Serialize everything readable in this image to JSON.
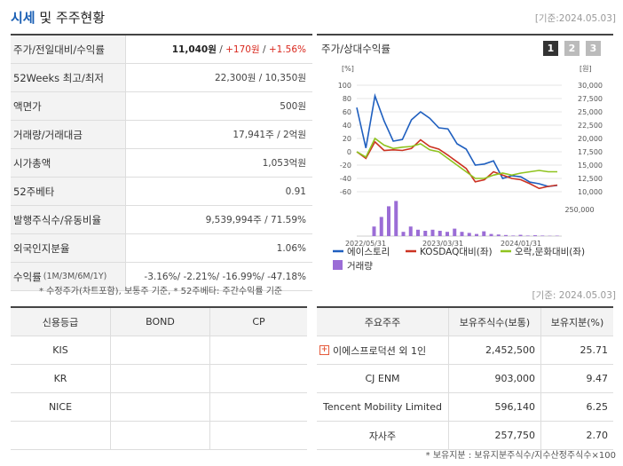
{
  "header": {
    "title_accent": "시세",
    "title_rest": " 및 주주현황",
    "date": "[기준:2024.05.03]"
  },
  "stock": {
    "rows": [
      {
        "label": "주가/전일대비/수익률",
        "price": "11,040원",
        "sep1": " / ",
        "change": "+170원",
        "sep2": " / ",
        "pct": "+1.56%"
      },
      {
        "label": "52Weeks 최고/최저",
        "value": "22,300원 / 10,350원"
      },
      {
        "label": "액면가",
        "value": "500원"
      },
      {
        "label": "거래량/거래대금",
        "value": "17,941주 / 2억원"
      },
      {
        "label": "시가총액",
        "value": "1,053억원"
      },
      {
        "label": "52주베타",
        "value": "0.91"
      },
      {
        "label": "발행주식수/유동비율",
        "value": "9,539,994주 / 71.59%"
      },
      {
        "label": "외국인지분율",
        "value": "1.06%"
      },
      {
        "label": "수익률",
        "sublabel": "(1M/3M/6M/1Y)",
        "value": "-3.16%/ -2.21%/ -16.99%/ -47.18%"
      }
    ],
    "footnote": "* 수정주가(차트포함), 보통주 기준, * 52주베타: 주간수익률 기준"
  },
  "chart_panel": {
    "title": "주가/상대수익률",
    "pages": [
      "1",
      "2",
      "3"
    ],
    "date": "[기준: 2024.05.03]"
  },
  "chart_data": {
    "type": "line",
    "title": "주가/상대수익률",
    "left_unit": "[%]",
    "right_unit": "[원]",
    "left_ticks": [
      "100",
      "80",
      "60",
      "40",
      "20",
      "0",
      "-20",
      "-40",
      "-60"
    ],
    "right_ticks": [
      "30,000",
      "27,500",
      "25,000",
      "22,500",
      "20,000",
      "17,500",
      "15,000",
      "12,500",
      "10,000"
    ],
    "volume_tick": "250,000",
    "x_labels": [
      "2022/05/31",
      "2023/03/31",
      "2024/01/31"
    ],
    "ylim_left": [
      -60,
      100
    ],
    "ylim_right": [
      10000,
      30000
    ],
    "series": [
      {
        "name": "에이스토리",
        "color": "#1f5fbf",
        "axis": "right",
        "values": [
          25800,
          18200,
          28000,
          23300,
          19500,
          19800,
          23500,
          25000,
          23800,
          22000,
          21800,
          19000,
          18000,
          15000,
          15200,
          15800,
          12500,
          13000,
          12800,
          11800,
          11500,
          11000,
          11200
        ]
      },
      {
        "name": "KOSDAQ대비(좌)",
        "color": "#cc3322",
        "axis": "left",
        "values": [
          0,
          -10,
          15,
          2,
          3,
          2,
          5,
          18,
          8,
          4,
          -5,
          -15,
          -25,
          -45,
          -42,
          -30,
          -35,
          -40,
          -42,
          -48,
          -55,
          -52,
          -50
        ]
      },
      {
        "name": "오락,문화대비(좌)",
        "color": "#8fc31f",
        "axis": "left",
        "values": [
          0,
          -8,
          20,
          10,
          5,
          7,
          8,
          12,
          3,
          0,
          -10,
          -20,
          -30,
          -40,
          -40,
          -35,
          -32,
          -35,
          -32,
          -30,
          -28,
          -30,
          -30
        ]
      }
    ],
    "volume": {
      "name": "거래량",
      "color": "#9b6dd6",
      "values": [
        0,
        0,
        90000,
        180000,
        280000,
        330000,
        40000,
        90000,
        60000,
        50000,
        60000,
        50000,
        40000,
        70000,
        40000,
        30000,
        20000,
        45000,
        20000,
        15000,
        10000,
        5000,
        12000,
        5000,
        8000,
        5000,
        3000,
        4000
      ]
    }
  },
  "credit": {
    "headers": [
      "신용등급",
      "BOND",
      "CP"
    ],
    "rows": [
      {
        "agency": "KIS",
        "bond": "",
        "cp": ""
      },
      {
        "agency": "KR",
        "bond": "",
        "cp": ""
      },
      {
        "agency": "NICE",
        "bond": "",
        "cp": ""
      },
      {
        "agency": "",
        "bond": "",
        "cp": ""
      }
    ]
  },
  "holders": {
    "headers": [
      "주요주주",
      "보유주식수(보통)",
      "보유지분(%)"
    ],
    "rows": [
      {
        "name": "이에스프로덕션 외 1인",
        "shares": "2,452,500",
        "pct": "25.71",
        "expand": "+"
      },
      {
        "name": "CJ ENM",
        "shares": "903,000",
        "pct": "9.47"
      },
      {
        "name": "Tencent Mobility Limited",
        "shares": "596,140",
        "pct": "6.25"
      },
      {
        "name": "자사주",
        "shares": "257,750",
        "pct": "2.70"
      }
    ],
    "footnote": "* 보유지분 : 보유지분주식수/지수산정주식수×100"
  }
}
